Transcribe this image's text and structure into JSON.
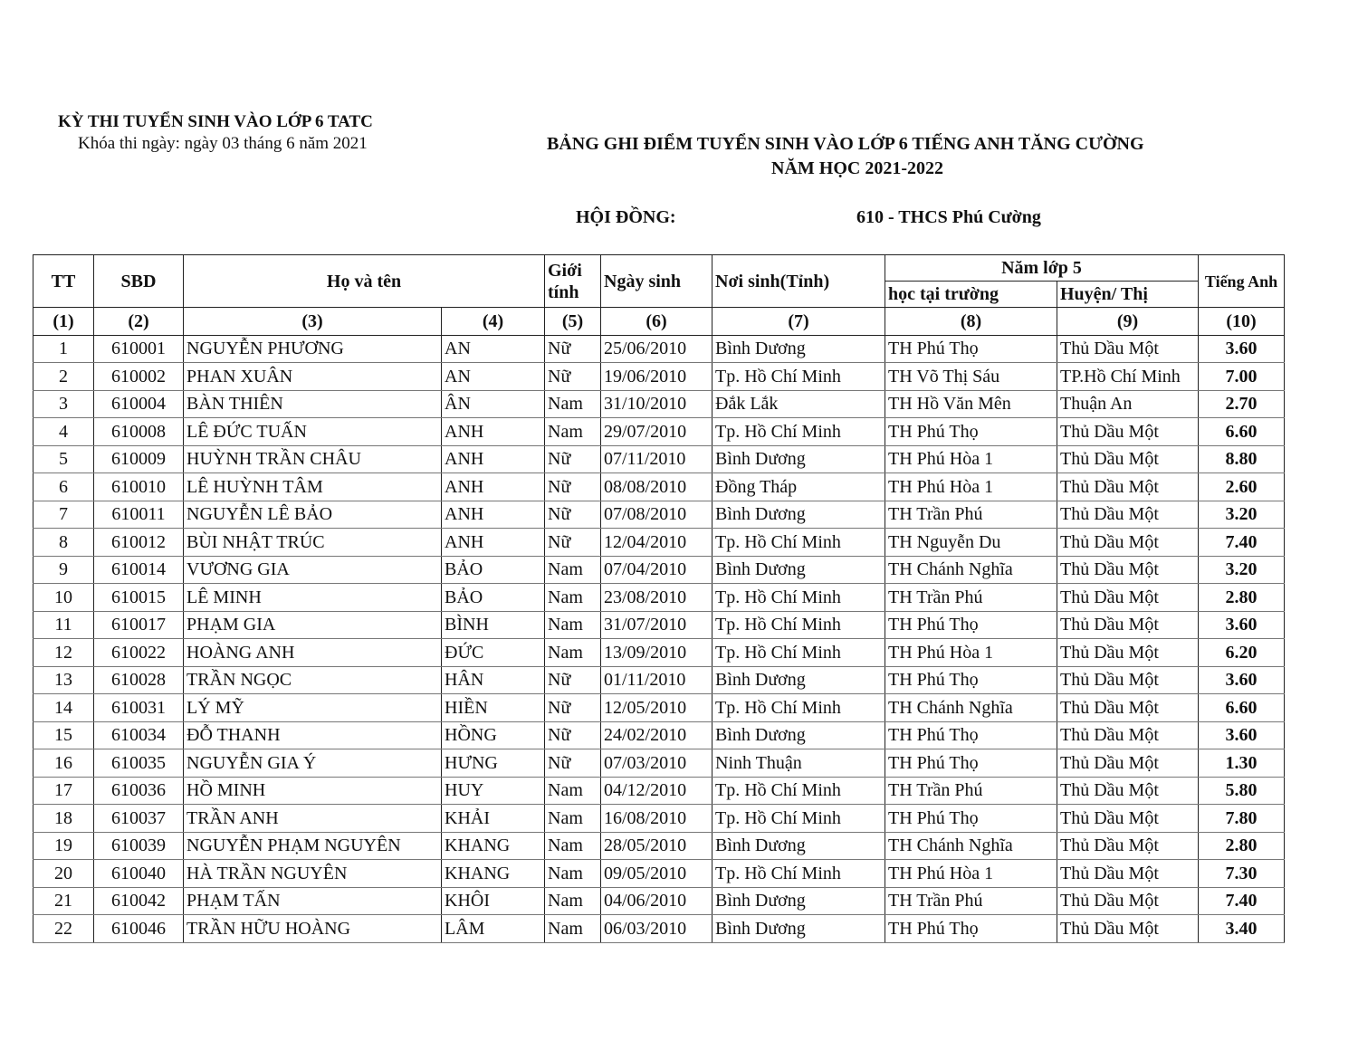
{
  "header": {
    "exam_title": "KỲ THI TUYỂN SINH VÀO LỚP 6 TATC",
    "exam_date": "Khóa thi ngày: ngày 03 tháng 6 năm 2021",
    "board_title": "BẢNG GHI ĐIỂM TUYỂN SINH VÀO LỚP 6 TIẾNG ANH TĂNG CƯỜNG",
    "school_year": "NĂM HỌC 2021-2022",
    "council_label": "HỘI ĐỒNG:",
    "council_value": "610 - THCS Phú Cường"
  },
  "table": {
    "headers": {
      "tt": "TT",
      "sbd": "SBD",
      "name": "Họ và tên",
      "gender": "Giới tính",
      "dob": "Ngày sinh",
      "birthplace": "Nơi sinh(Tỉnh)",
      "grade5": "Năm lớp 5",
      "school": "học tại trường",
      "district": "Huyện/ Thị",
      "english": "Tiếng Anh"
    },
    "col_numbers": [
      "(1)",
      "(2)",
      "(3)",
      "(4)",
      "(5)",
      "(6)",
      "(7)",
      "(8)",
      "(9)",
      "(10)"
    ],
    "rows": [
      [
        "1",
        "610001",
        "NGUYỄN PHƯƠNG",
        "AN",
        "Nữ",
        "25/06/2010",
        "Bình Dương",
        "TH Phú Thọ",
        "Thủ Dầu Một",
        "3.60"
      ],
      [
        "2",
        "610002",
        "PHAN XUÂN",
        "AN",
        "Nữ",
        "19/06/2010",
        "Tp. Hồ Chí Minh",
        "TH Võ Thị Sáu",
        "TP.Hồ Chí Minh",
        "7.00"
      ],
      [
        "3",
        "610004",
        "BÀN THIÊN",
        "ÂN",
        "Nam",
        "31/10/2010",
        "Đắk Lắk",
        "TH Hồ Văn Mên",
        "Thuận An",
        "2.70"
      ],
      [
        "4",
        "610008",
        "LÊ ĐỨC TUẤN",
        "ANH",
        "Nam",
        "29/07/2010",
        "Tp. Hồ Chí Minh",
        "TH Phú Thọ",
        "Thủ Dầu Một",
        "6.60"
      ],
      [
        "5",
        "610009",
        "HUỲNH TRẦN CHÂU",
        "ANH",
        "Nữ",
        "07/11/2010",
        "Bình Dương",
        "TH Phú Hòa 1",
        "Thủ Dầu Một",
        "8.80"
      ],
      [
        "6",
        "610010",
        "LÊ HUỲNH TÂM",
        "ANH",
        "Nữ",
        "08/08/2010",
        "Đồng Tháp",
        "TH Phú Hòa 1",
        "Thủ Dầu Một",
        "2.60"
      ],
      [
        "7",
        "610011",
        "NGUYỄN LÊ BẢO",
        "ANH",
        "Nữ",
        "07/08/2010",
        "Bình Dương",
        "TH Trần Phú",
        "Thủ Dầu Một",
        "3.20"
      ],
      [
        "8",
        "610012",
        "BÙI NHẬT TRÚC",
        "ANH",
        "Nữ",
        "12/04/2010",
        "Tp. Hồ Chí Minh",
        "TH Nguyễn Du",
        "Thủ Dầu Một",
        "7.40"
      ],
      [
        "9",
        "610014",
        "VƯƠNG GIA",
        "BẢO",
        "Nam",
        "07/04/2010",
        "Bình Dương",
        "TH Chánh Nghĩa",
        "Thủ Dầu Một",
        "3.20"
      ],
      [
        "10",
        "610015",
        "LÊ MINH",
        "BẢO",
        "Nam",
        "23/08/2010",
        "Tp. Hồ Chí Minh",
        "TH Trần Phú",
        "Thủ Dầu Một",
        "2.80"
      ],
      [
        "11",
        "610017",
        "PHẠM GIA",
        "BÌNH",
        "Nam",
        "31/07/2010",
        "Tp. Hồ Chí Minh",
        "TH Phú Thọ",
        "Thủ Dầu Một",
        "3.60"
      ],
      [
        "12",
        "610022",
        "HOÀNG ANH",
        "ĐỨC",
        "Nam",
        "13/09/2010",
        "Tp. Hồ Chí Minh",
        "TH Phú Hòa 1",
        "Thủ Dầu Một",
        "6.20"
      ],
      [
        "13",
        "610028",
        "TRẦN NGỌC",
        "HÂN",
        "Nữ",
        "01/11/2010",
        "Bình Dương",
        "TH Phú Thọ",
        "Thủ Dầu Một",
        "3.60"
      ],
      [
        "14",
        "610031",
        "LÝ MỸ",
        "HIỀN",
        "Nữ",
        "12/05/2010",
        "Tp. Hồ Chí Minh",
        "TH Chánh Nghĩa",
        "Thủ Dầu Một",
        "6.60"
      ],
      [
        "15",
        "610034",
        "ĐỖ THANH",
        "HỒNG",
        "Nữ",
        "24/02/2010",
        "Bình Dương",
        "TH Phú Thọ",
        "Thủ Dầu Một",
        "3.60"
      ],
      [
        "16",
        "610035",
        "NGUYỄN GIA Ý",
        "HƯNG",
        "Nữ",
        "07/03/2010",
        "Ninh Thuận",
        "TH Phú Thọ",
        "Thủ Dầu Một",
        "1.30"
      ],
      [
        "17",
        "610036",
        "HỒ MINH",
        "HUY",
        "Nam",
        "04/12/2010",
        "Tp. Hồ Chí Minh",
        "TH Trần Phú",
        "Thủ Dầu Một",
        "5.80"
      ],
      [
        "18",
        "610037",
        "TRẦN ANH",
        "KHẢI",
        "Nam",
        "16/08/2010",
        "Tp. Hồ Chí Minh",
        "TH Phú Thọ",
        "Thủ Dầu Một",
        "7.80"
      ],
      [
        "19",
        "610039",
        "NGUYỄN PHẠM NGUYÊN",
        "KHANG",
        "Nam",
        "28/05/2010",
        "Bình Dương",
        "TH Chánh Nghĩa",
        "Thủ Dầu Một",
        "2.80"
      ],
      [
        "20",
        "610040",
        "HÀ TRẦN NGUYÊN",
        "KHANG",
        "Nam",
        "09/05/2010",
        "Tp. Hồ Chí Minh",
        "TH Phú Hòa 1",
        "Thủ Dầu Một",
        "7.30"
      ],
      [
        "21",
        "610042",
        "PHẠM TẤN",
        "KHÔI",
        "Nam",
        "04/06/2010",
        "Bình Dương",
        "TH Trần Phú",
        "Thủ Dầu Một",
        "7.40"
      ],
      [
        "22",
        "610046",
        "TRẦN HỮU HOÀNG",
        "LÂM",
        "Nam",
        "06/03/2010",
        "Bình Dương",
        "TH Phú Thọ",
        "Thủ Dầu Một",
        "3.40"
      ]
    ]
  }
}
